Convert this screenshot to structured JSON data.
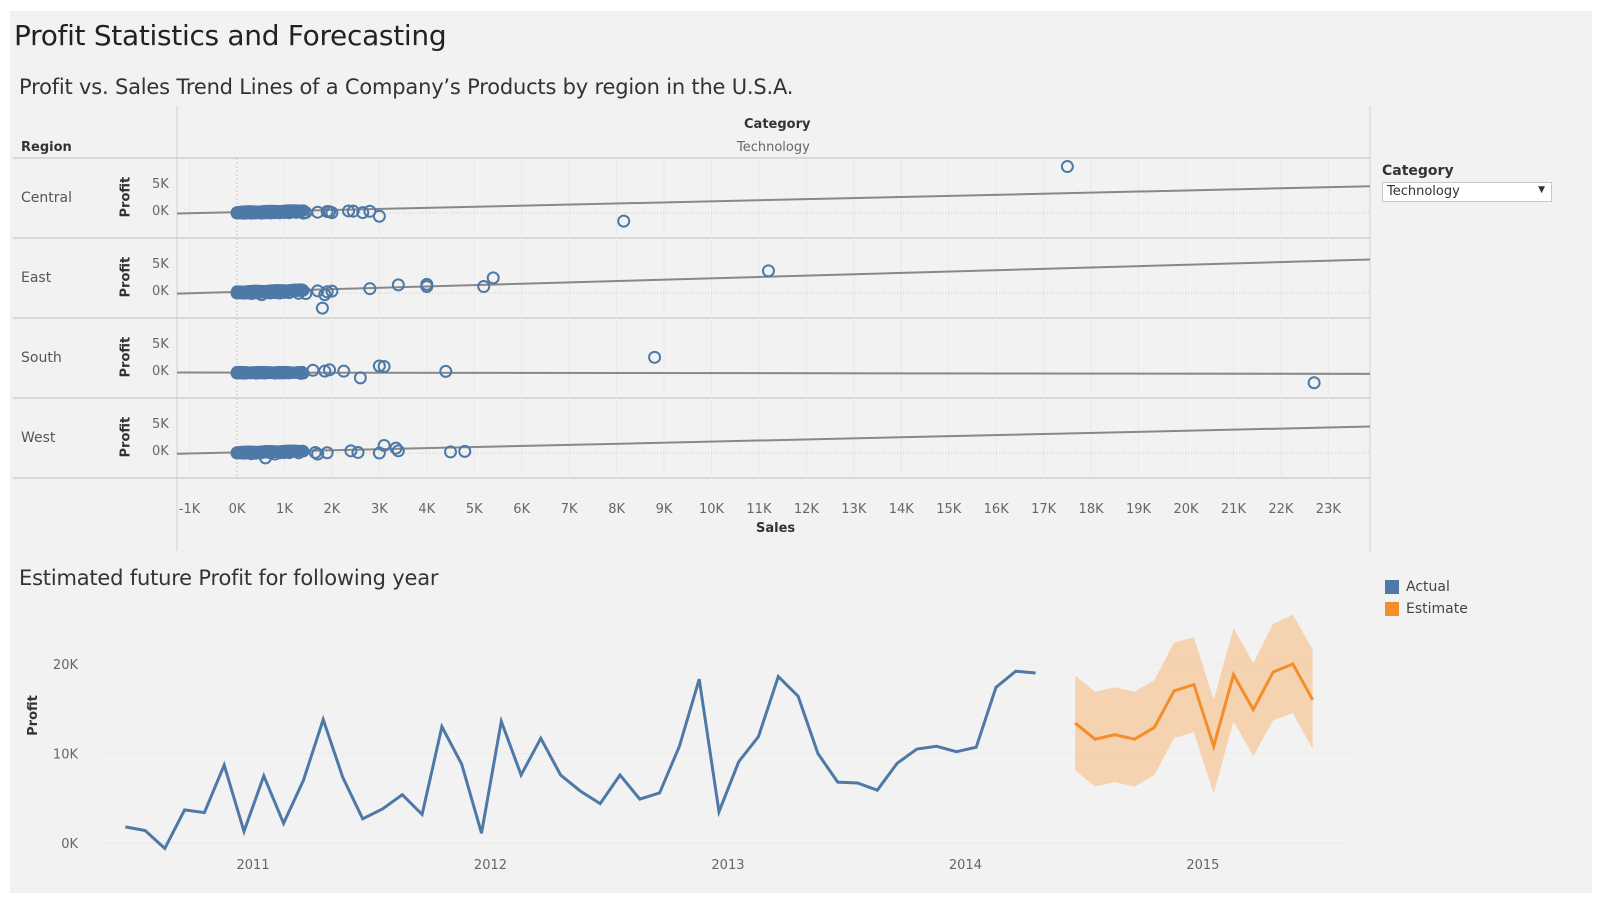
{
  "dashboard": {
    "title": "Profit Statistics and Forecasting"
  },
  "filter": {
    "label": "Category",
    "selected": "Technology",
    "dropdown_icon": "caret-down-icon"
  },
  "colors": {
    "actual": "#4e79a7",
    "estimate": "#f28e2b",
    "estimate_band": "#f5cfa9",
    "trend_line": "#888888",
    "background": "#f2f2f2"
  },
  "chart_data": [
    {
      "type": "scatter",
      "title": "Profit vs. Sales Trend Lines of a Company’s Products by region in the U.S.A.",
      "column_header_title": "Category",
      "column_header_value": "Technology",
      "row_header_title": "Region",
      "xlabel": "Sales",
      "ylabel": "Profit",
      "xlim": [
        -1250,
        24000
      ],
      "x_ticks": [
        "-1K",
        "0K",
        "1K",
        "2K",
        "3K",
        "4K",
        "5K",
        "6K",
        "7K",
        "8K",
        "9K",
        "10K",
        "11K",
        "12K",
        "13K",
        "14K",
        "15K",
        "16K",
        "17K",
        "18K",
        "19K",
        "20K",
        "21K",
        "22K",
        "23K"
      ],
      "x_tick_values": [
        -1000,
        0,
        1000,
        2000,
        3000,
        4000,
        5000,
        6000,
        7000,
        8000,
        9000,
        10000,
        11000,
        12000,
        13000,
        14000,
        15000,
        16000,
        17000,
        18000,
        19000,
        20000,
        21000,
        22000,
        23000
      ],
      "y_ticks": [
        "5K",
        "0K"
      ],
      "y_tick_values": [
        5000,
        0
      ],
      "grid": true,
      "rows": [
        {
          "region": "Central",
          "trend": {
            "intercept": 150,
            "slope": 0.2
          },
          "points": [
            [
              0,
              0
            ],
            [
              80,
              0
            ],
            [
              150,
              -50
            ],
            [
              220,
              20
            ],
            [
              300,
              -30
            ],
            [
              380,
              10
            ],
            [
              450,
              40
            ],
            [
              520,
              -20
            ],
            [
              600,
              30
            ],
            [
              700,
              0
            ],
            [
              800,
              60
            ],
            [
              900,
              30
            ],
            [
              1000,
              90
            ],
            [
              1100,
              40
            ],
            [
              1250,
              120
            ],
            [
              1400,
              -20
            ],
            [
              1450,
              80
            ],
            [
              1700,
              150
            ],
            [
              1900,
              280
            ],
            [
              1950,
              220
            ],
            [
              2000,
              60
            ],
            [
              2350,
              380
            ],
            [
              2450,
              340
            ],
            [
              2650,
              80
            ],
            [
              2800,
              320
            ],
            [
              3000,
              -600
            ],
            [
              8150,
              -1500
            ],
            [
              17500,
              8600
            ]
          ]
        },
        {
          "region": "East",
          "trend": {
            "intercept": 200,
            "slope": 0.25
          },
          "points": [
            [
              0,
              0
            ],
            [
              80,
              10
            ],
            [
              150,
              -40
            ],
            [
              220,
              30
            ],
            [
              300,
              -100
            ],
            [
              380,
              20
            ],
            [
              450,
              40
            ],
            [
              520,
              -300
            ],
            [
              600,
              50
            ],
            [
              700,
              10
            ],
            [
              800,
              70
            ],
            [
              900,
              0
            ],
            [
              1000,
              100
            ],
            [
              1100,
              60
            ],
            [
              1300,
              -60
            ],
            [
              1450,
              -100
            ],
            [
              1700,
              400
            ],
            [
              1850,
              -300
            ],
            [
              1900,
              220
            ],
            [
              1800,
              -2800
            ],
            [
              2000,
              350
            ],
            [
              2800,
              800
            ],
            [
              3400,
              1500
            ],
            [
              4000,
              1600
            ],
            [
              4000,
              1200
            ],
            [
              5200,
              1200
            ],
            [
              5400,
              2800
            ],
            [
              11200,
              4100
            ]
          ]
        },
        {
          "region": "South",
          "trend": {
            "intercept": 80,
            "slope": -0.01
          },
          "points": [
            [
              0,
              0
            ],
            [
              80,
              20
            ],
            [
              150,
              -40
            ],
            [
              220,
              10
            ],
            [
              300,
              30
            ],
            [
              400,
              -20
            ],
            [
              500,
              40
            ],
            [
              600,
              20
            ],
            [
              700,
              60
            ],
            [
              800,
              -30
            ],
            [
              900,
              40
            ],
            [
              1000,
              80
            ],
            [
              1100,
              30
            ],
            [
              1350,
              -80
            ],
            [
              1600,
              500
            ],
            [
              1850,
              350
            ],
            [
              1950,
              600
            ],
            [
              2250,
              340
            ],
            [
              2600,
              -900
            ],
            [
              3000,
              1300
            ],
            [
              3100,
              1200
            ],
            [
              4400,
              300
            ],
            [
              8800,
              2900
            ],
            [
              22700,
              -1800
            ]
          ]
        },
        {
          "region": "West",
          "trend": {
            "intercept": 100,
            "slope": 0.2
          },
          "points": [
            [
              0,
              0
            ],
            [
              80,
              20
            ],
            [
              150,
              -40
            ],
            [
              220,
              10
            ],
            [
              300,
              -120
            ],
            [
              400,
              -40
            ],
            [
              500,
              20
            ],
            [
              600,
              -900
            ],
            [
              700,
              30
            ],
            [
              800,
              -200
            ],
            [
              900,
              40
            ],
            [
              1000,
              80
            ],
            [
              1100,
              60
            ],
            [
              1300,
              30
            ],
            [
              1650,
              100
            ],
            [
              1700,
              -200
            ],
            [
              1900,
              50
            ],
            [
              2400,
              400
            ],
            [
              2550,
              100
            ],
            [
              3000,
              0
            ],
            [
              3100,
              1400
            ],
            [
              3350,
              900
            ],
            [
              3400,
              400
            ],
            [
              4500,
              200
            ],
            [
              4800,
              300
            ]
          ]
        }
      ]
    },
    {
      "type": "line",
      "title": "Estimated future Profit for following year",
      "xlabel": "",
      "ylabel": "Profit",
      "ylim": [
        -1000,
        22000
      ],
      "y_ticks": [
        "20K",
        "10K",
        "0K"
      ],
      "y_tick_values": [
        20000,
        10000,
        0
      ],
      "x_ticks": [
        "2011",
        "2012",
        "2013",
        "2014",
        "2015"
      ],
      "legend": {
        "position": "top-right",
        "entries": [
          "Actual",
          "Estimate"
        ]
      },
      "series": [
        {
          "name": "Actual",
          "start": "2010-07",
          "values": [
            1800,
            1400,
            -600,
            3700,
            3400,
            8700,
            1300,
            7500,
            2200,
            7000,
            13800,
            7300,
            2700,
            3800,
            5400,
            3200,
            13000,
            8800,
            1100,
            13600,
            7600,
            11700,
            7600,
            5800,
            4400,
            7600,
            4900,
            5600,
            10800,
            18300,
            3500,
            9100,
            11900,
            18600,
            16400,
            10000,
            6800,
            6700,
            5900,
            8900,
            10500,
            10800,
            10200,
            10700,
            17400,
            19200,
            19000
          ]
        },
        {
          "name": "Estimate",
          "start": "2014-07",
          "values": [
            13400,
            11600,
            12100,
            11600,
            12900,
            17000,
            17700,
            10800,
            18800,
            14900,
            19100,
            20000,
            16000
          ],
          "upper": [
            18700,
            16900,
            17400,
            16900,
            18200,
            22400,
            23000,
            16000,
            24000,
            20100,
            24500,
            25500,
            21600
          ],
          "lower": [
            8100,
            6300,
            6800,
            6300,
            7600,
            11700,
            12400,
            5500,
            13600,
            9700,
            13700,
            14500,
            10500
          ]
        }
      ]
    }
  ]
}
